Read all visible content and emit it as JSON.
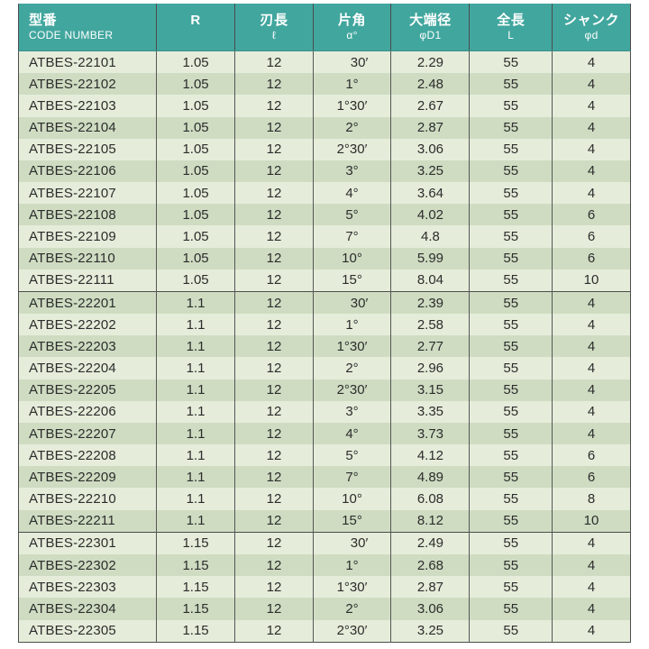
{
  "table": {
    "columns": [
      {
        "jp": "型番",
        "sub": "CODE NUMBER"
      },
      {
        "jp": "R",
        "sub": ""
      },
      {
        "jp": "刃長",
        "sub": "ℓ"
      },
      {
        "jp": "片角",
        "sub": "α°"
      },
      {
        "jp": "大端径",
        "sub": "φD1"
      },
      {
        "jp": "全長",
        "sub": "L"
      },
      {
        "jp": "シャンク",
        "sub": "φd"
      }
    ],
    "groups": [
      {
        "rows": [
          [
            "ATBES-22101",
            "1.05",
            "12",
            "30′",
            "2.29",
            "55",
            "4"
          ],
          [
            "ATBES-22102",
            "1.05",
            "12",
            "1°",
            "2.48",
            "55",
            "4"
          ],
          [
            "ATBES-22103",
            "1.05",
            "12",
            "1°30′",
            "2.67",
            "55",
            "4"
          ],
          [
            "ATBES-22104",
            "1.05",
            "12",
            "2°",
            "2.87",
            "55",
            "4"
          ],
          [
            "ATBES-22105",
            "1.05",
            "12",
            "2°30′",
            "3.06",
            "55",
            "4"
          ],
          [
            "ATBES-22106",
            "1.05",
            "12",
            "3°",
            "3.25",
            "55",
            "4"
          ],
          [
            "ATBES-22107",
            "1.05",
            "12",
            "4°",
            "3.64",
            "55",
            "4"
          ],
          [
            "ATBES-22108",
            "1.05",
            "12",
            "5°",
            "4.02",
            "55",
            "6"
          ],
          [
            "ATBES-22109",
            "1.05",
            "12",
            "7°",
            "4.8",
            "55",
            "6"
          ],
          [
            "ATBES-22110",
            "1.05",
            "12",
            "10°",
            "5.99",
            "55",
            "6"
          ],
          [
            "ATBES-22111",
            "1.05",
            "12",
            "15°",
            "8.04",
            "55",
            "10"
          ]
        ]
      },
      {
        "rows": [
          [
            "ATBES-22201",
            "1.1",
            "12",
            "30′",
            "2.39",
            "55",
            "4"
          ],
          [
            "ATBES-22202",
            "1.1",
            "12",
            "1°",
            "2.58",
            "55",
            "4"
          ],
          [
            "ATBES-22203",
            "1.1",
            "12",
            "1°30′",
            "2.77",
            "55",
            "4"
          ],
          [
            "ATBES-22204",
            "1.1",
            "12",
            "2°",
            "2.96",
            "55",
            "4"
          ],
          [
            "ATBES-22205",
            "1.1",
            "12",
            "2°30′",
            "3.15",
            "55",
            "4"
          ],
          [
            "ATBES-22206",
            "1.1",
            "12",
            "3°",
            "3.35",
            "55",
            "4"
          ],
          [
            "ATBES-22207",
            "1.1",
            "12",
            "4°",
            "3.73",
            "55",
            "4"
          ],
          [
            "ATBES-22208",
            "1.1",
            "12",
            "5°",
            "4.12",
            "55",
            "6"
          ],
          [
            "ATBES-22209",
            "1.1",
            "12",
            "7°",
            "4.89",
            "55",
            "6"
          ],
          [
            "ATBES-22210",
            "1.1",
            "12",
            "10°",
            "6.08",
            "55",
            "8"
          ],
          [
            "ATBES-22211",
            "1.1",
            "12",
            "15°",
            "8.12",
            "55",
            "10"
          ]
        ]
      },
      {
        "rows": [
          [
            "ATBES-22301",
            "1.15",
            "12",
            "30′",
            "2.49",
            "55",
            "4"
          ],
          [
            "ATBES-22302",
            "1.15",
            "12",
            "1°",
            "2.68",
            "55",
            "4"
          ],
          [
            "ATBES-22303",
            "1.15",
            "12",
            "1°30′",
            "2.87",
            "55",
            "4"
          ],
          [
            "ATBES-22304",
            "1.15",
            "12",
            "2°",
            "3.06",
            "55",
            "4"
          ],
          [
            "ATBES-22305",
            "1.15",
            "12",
            "2°30′",
            "3.25",
            "55",
            "4"
          ]
        ]
      }
    ]
  },
  "colors": {
    "header_bg": "#41a69e",
    "header_text": "#ffffff",
    "row_light": "#e5edda",
    "row_dark": "#cfdcc2",
    "border": "#4c4c4c",
    "text": "#2c2c2c"
  }
}
